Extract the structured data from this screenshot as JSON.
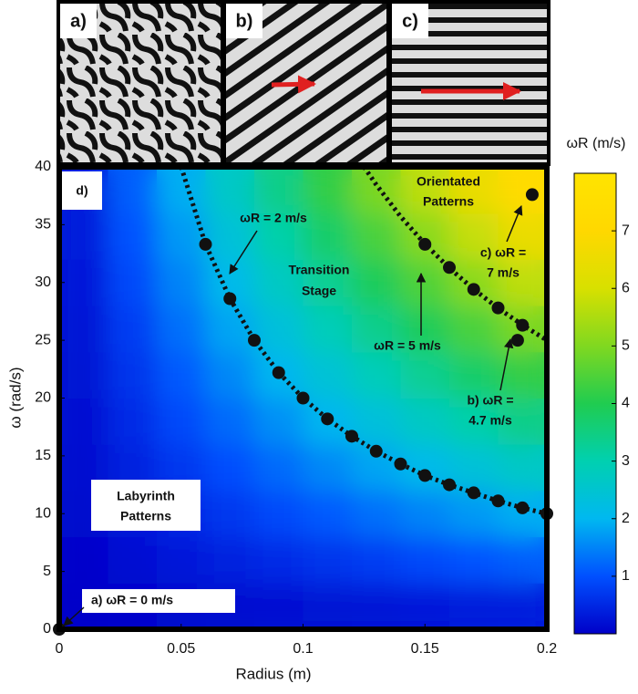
{
  "chart_data": {
    "type": "heatmap",
    "insets": [
      "a)",
      "b)",
      "c)"
    ],
    "xlabel": "Radius (m)",
    "ylabel": "ω (rad/s)",
    "colorbar_label": "ωR (m/s)",
    "xlim": [
      0,
      0.2
    ],
    "ylim": [
      0,
      40
    ],
    "xticks": [
      0,
      0.05,
      0.1,
      0.15,
      0.2
    ],
    "yticks": [
      0,
      5,
      10,
      15,
      20,
      25,
      30,
      35,
      40
    ],
    "clim": [
      0,
      8
    ],
    "cticks": [
      1,
      2,
      3,
      4,
      5,
      6,
      7
    ],
    "colormap": [
      "#0000c8",
      "#0050ff",
      "#00b8f0",
      "#00d0b0",
      "#20cc50",
      "#80d820",
      "#d8e000",
      "#ffd800",
      "#ffe400"
    ],
    "x": [
      0.01,
      0.03,
      0.05,
      0.07,
      0.09,
      0.11,
      0.13,
      0.15,
      0.17,
      0.19
    ],
    "y": [
      2,
      6,
      10,
      14,
      18,
      22,
      26,
      30,
      34,
      38
    ],
    "z": [
      [
        0.02,
        0.06,
        0.1,
        0.14,
        0.18,
        0.22,
        0.26,
        0.3,
        0.34,
        0.38
      ],
      [
        0.06,
        0.18,
        0.3,
        0.42,
        0.54,
        0.66,
        0.78,
        0.9,
        1.02,
        1.14
      ],
      [
        0.1,
        0.3,
        0.5,
        0.7,
        0.9,
        1.1,
        1.3,
        1.5,
        1.7,
        1.9
      ],
      [
        0.14,
        0.42,
        0.7,
        0.98,
        1.26,
        1.54,
        1.82,
        2.1,
        2.38,
        2.66
      ],
      [
        0.18,
        0.54,
        0.9,
        1.26,
        1.62,
        1.98,
        2.34,
        2.7,
        3.06,
        3.42
      ],
      [
        0.22,
        0.66,
        1.1,
        1.54,
        1.98,
        2.42,
        2.86,
        3.3,
        3.74,
        4.18
      ],
      [
        0.26,
        0.78,
        1.3,
        1.82,
        2.34,
        2.86,
        3.38,
        3.9,
        4.42,
        4.94
      ],
      [
        0.3,
        0.9,
        1.5,
        2.1,
        2.7,
        3.3,
        3.9,
        4.5,
        5.1,
        5.7
      ],
      [
        0.34,
        1.02,
        1.7,
        2.38,
        3.06,
        3.74,
        4.42,
        5.1,
        5.78,
        6.46
      ],
      [
        0.38,
        1.14,
        1.9,
        2.66,
        3.42,
        4.18,
        4.94,
        5.7,
        6.46,
        7.22
      ]
    ],
    "contours": [
      {
        "x": [
          0.05,
          0.06,
          0.07,
          0.08,
          0.09,
          0.1,
          0.11,
          0.12,
          0.13,
          0.14,
          0.15,
          0.16,
          0.17,
          0.18,
          0.19,
          0.2
        ],
        "y": [
          40,
          33.3,
          28.6,
          25,
          22.2,
          20,
          18.2,
          16.7,
          15.4,
          14.3,
          13.3,
          12.5,
          11.8,
          11.1,
          10.5,
          10
        ]
      },
      {
        "x": [
          0.125,
          0.13,
          0.14,
          0.15,
          0.16,
          0.17,
          0.18,
          0.19,
          0.2
        ],
        "y": [
          40,
          38.46,
          35.71,
          33.33,
          31.25,
          29.41,
          27.78,
          26.32,
          25
        ]
      }
    ],
    "points": {
      "x": [
        0.06,
        0.07,
        0.08,
        0.09,
        0.1,
        0.11,
        0.12,
        0.13,
        0.14,
        0.15,
        0.16,
        0.17,
        0.18,
        0.19,
        0.2,
        0.15,
        0.16,
        0.17,
        0.18,
        0.19,
        0.194,
        0.188,
        0
      ],
      "y": [
        33.3,
        28.6,
        25,
        22.2,
        20,
        18.2,
        16.7,
        15.4,
        14.3,
        13.3,
        12.5,
        11.8,
        11.1,
        10.5,
        10,
        33.3,
        31.3,
        29.4,
        27.8,
        26.3,
        37.6,
        25,
        0
      ]
    },
    "annotations": [
      {
        "lines": [
          "d)"
        ]
      },
      {
        "lines": [
          "Orientated",
          "Patterns"
        ]
      },
      {
        "lines": [
          "ωR = 2 m/s"
        ]
      },
      {
        "lines": [
          "Transition",
          "Stage"
        ]
      },
      {
        "lines": [
          "c) ωR =",
          "7 m/s"
        ]
      },
      {
        "lines": [
          "ωR = 5 m/s"
        ]
      },
      {
        "lines": [
          "b) ωR =",
          "4.7 m/s"
        ]
      },
      {
        "lines": [
          "Labyrinth",
          "Patterns"
        ]
      },
      {
        "lines": [
          "a)  ωR = 0 m/s"
        ]
      }
    ]
  }
}
